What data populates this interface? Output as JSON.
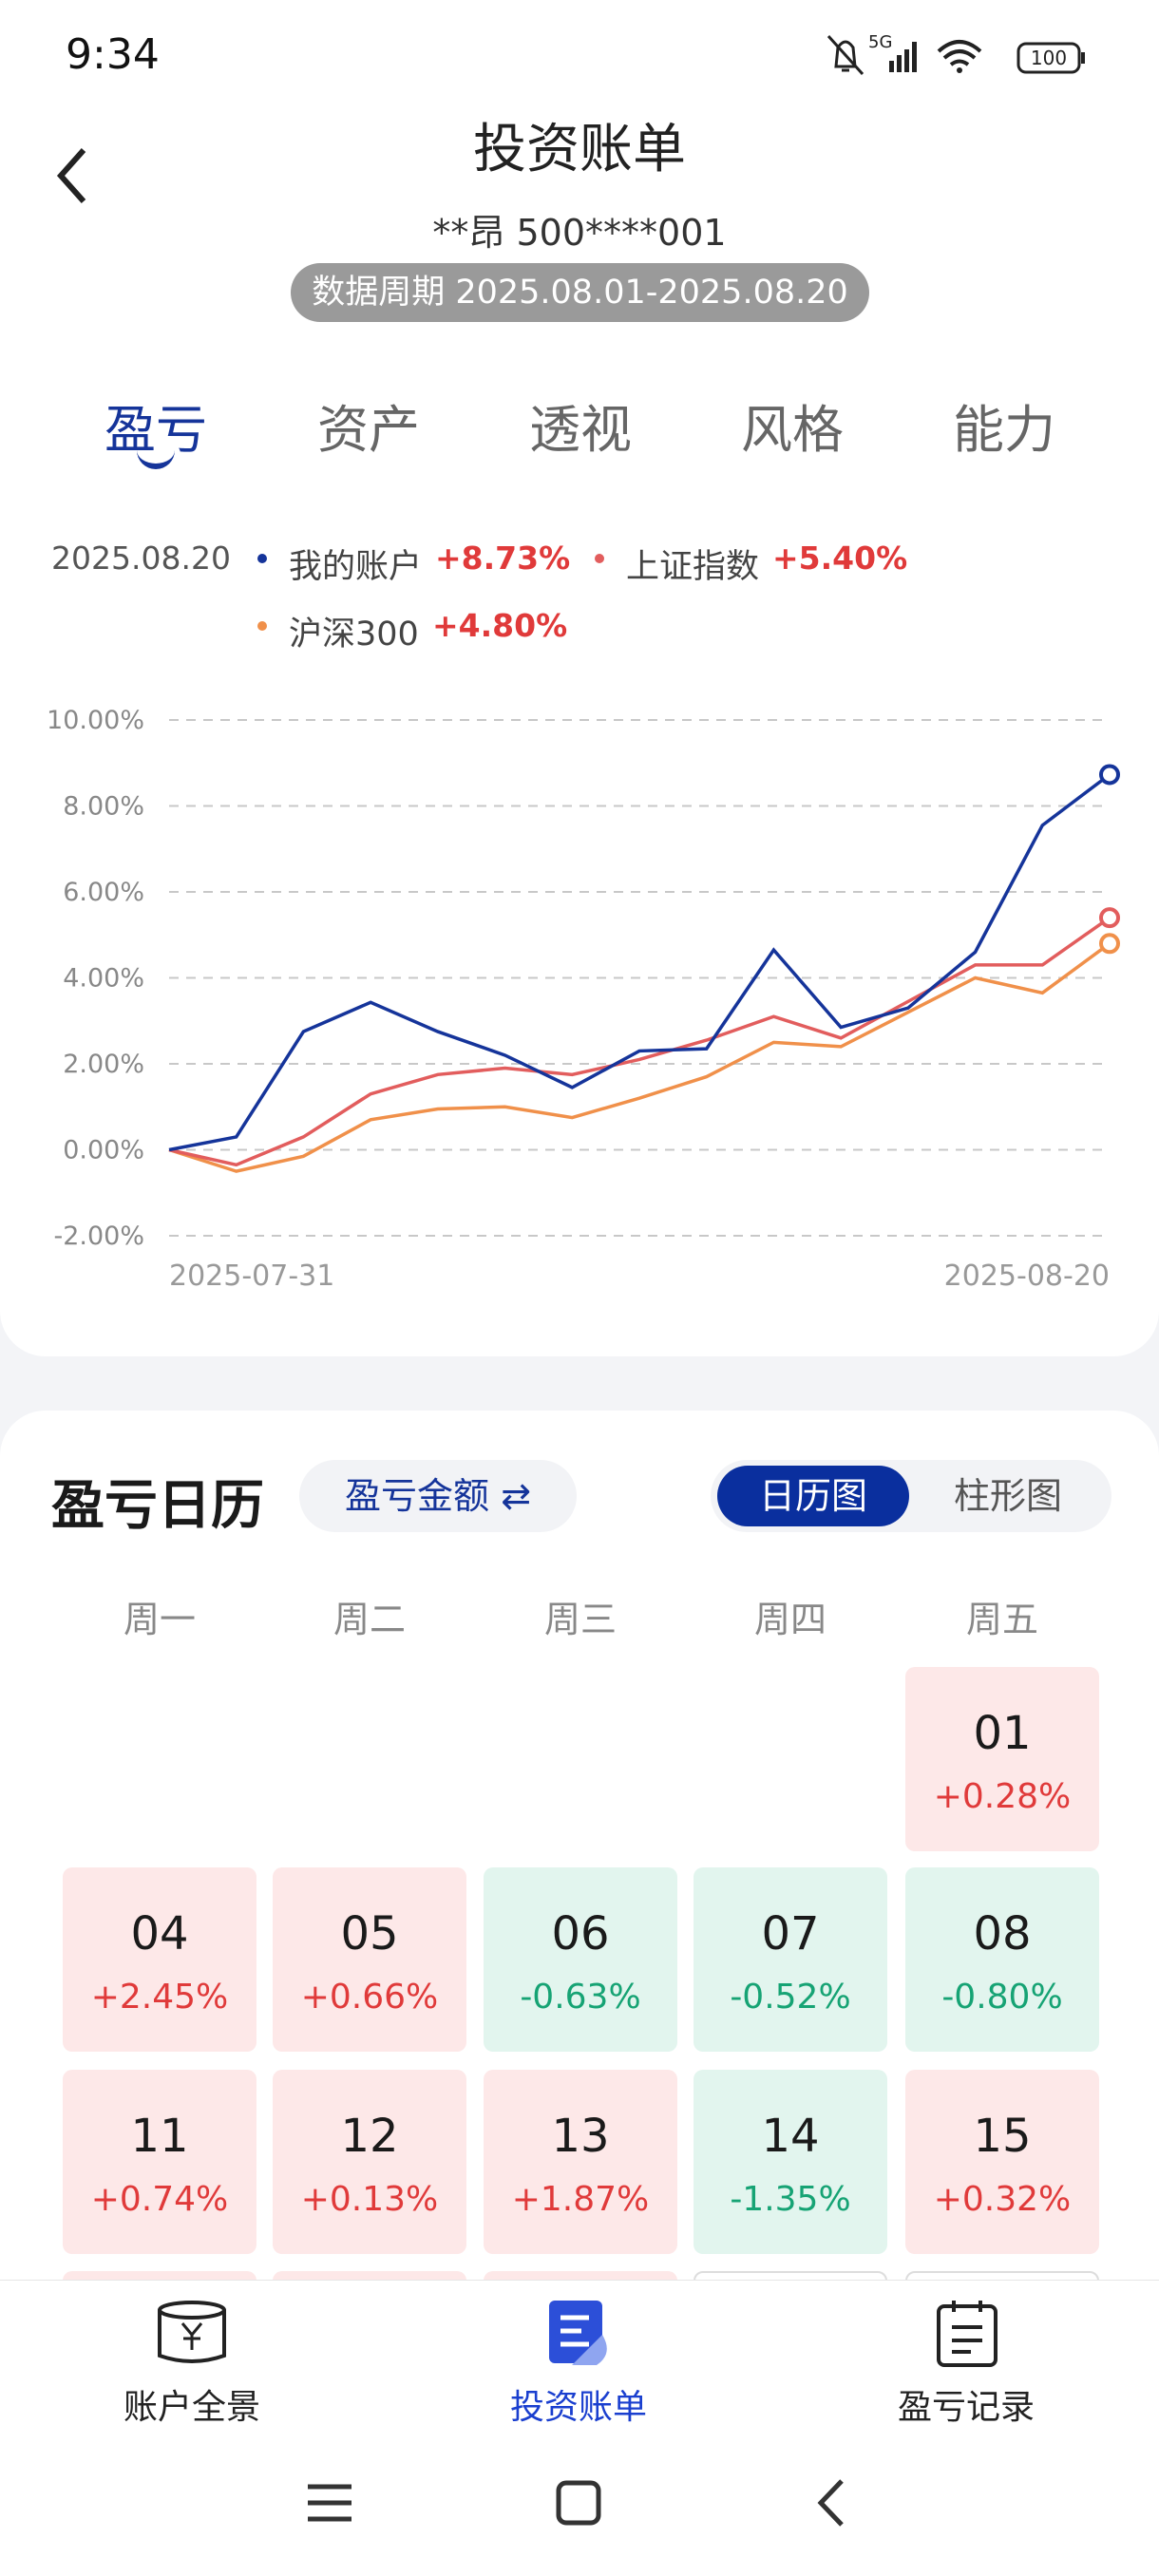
{
  "status": {
    "time": "9:34",
    "network": "5G",
    "battery": "100"
  },
  "header": {
    "title": "投资账单",
    "account": "**昂 500****001",
    "period": "数据周期 2025.08.01-2025.08.20"
  },
  "tabs": {
    "items": [
      "盈亏",
      "资产",
      "透视",
      "风格",
      "能力"
    ],
    "active": 0
  },
  "chart_data": {
    "type": "line",
    "date": "2025.08.20",
    "categories": [
      "2025-07-31",
      null,
      null,
      null,
      null,
      null,
      null,
      null,
      null,
      null,
      null,
      null,
      null,
      null,
      "2025-08-20"
    ],
    "series": [
      {
        "name": "我的账户",
        "color": "#15349a",
        "latest_label": "+8.73%",
        "values": [
          0,
          0.3,
          2.75,
          3.43,
          2.75,
          2.2,
          1.45,
          2.3,
          2.35,
          4.65,
          2.85,
          3.3,
          4.6,
          7.55,
          8.73
        ]
      },
      {
        "name": "上证指数",
        "color": "#e25d5d",
        "latest_label": "+5.40%",
        "values": [
          0,
          -0.35,
          0.3,
          1.3,
          1.75,
          1.9,
          1.75,
          2.1,
          2.55,
          3.1,
          2.6,
          3.45,
          4.3,
          4.3,
          5.4
        ]
      },
      {
        "name": "沪深300",
        "color": "#f0904a",
        "latest_label": "+4.80%",
        "values": [
          0,
          -0.5,
          -0.15,
          0.7,
          0.95,
          1.0,
          0.75,
          1.2,
          1.7,
          2.5,
          2.4,
          3.2,
          4.0,
          3.65,
          4.8
        ]
      }
    ],
    "ylim": [
      -2,
      10
    ],
    "yticks": [
      {
        "value": -2,
        "label": "-2.00%"
      },
      {
        "value": 0,
        "label": "0.00%"
      },
      {
        "value": 2,
        "label": "2.00%"
      },
      {
        "value": 4,
        "label": "4.00%"
      },
      {
        "value": 6,
        "label": "6.00%"
      },
      {
        "value": 8,
        "label": "8.00%"
      },
      {
        "value": 10,
        "label": "10.00%"
      }
    ],
    "grid": true
  },
  "calendar": {
    "title": "盈亏日历",
    "mode": "盈亏金额 ⇄",
    "views": [
      "日历图",
      "柱形图"
    ],
    "active_view": 0,
    "weekdays": [
      "周一",
      "周二",
      "周三",
      "周四",
      "周五"
    ],
    "weeks": [
      [
        null,
        null,
        null,
        null,
        {
          "day": "01",
          "change": "+0.28%",
          "trend": "up"
        }
      ],
      [
        {
          "day": "04",
          "change": "+2.45%",
          "trend": "up"
        },
        {
          "day": "05",
          "change": "+0.66%",
          "trend": "up"
        },
        {
          "day": "06",
          "change": "-0.63%",
          "trend": "down"
        },
        {
          "day": "07",
          "change": "-0.52%",
          "trend": "down"
        },
        {
          "day": "08",
          "change": "-0.80%",
          "trend": "down"
        }
      ],
      [
        {
          "day": "11",
          "change": "+0.74%",
          "trend": "up"
        },
        {
          "day": "12",
          "change": "+0.13%",
          "trend": "up"
        },
        {
          "day": "13",
          "change": "+1.87%",
          "trend": "up"
        },
        {
          "day": "14",
          "change": "-1.35%",
          "trend": "down"
        },
        {
          "day": "15",
          "change": "+0.32%",
          "trend": "up"
        }
      ]
    ]
  },
  "nav": {
    "items": [
      "账户全景",
      "投资账单",
      "盈亏记录"
    ],
    "active": 1
  }
}
